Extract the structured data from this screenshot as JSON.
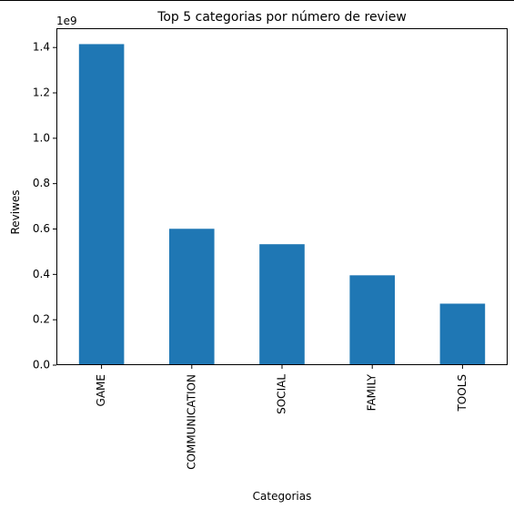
{
  "chart_data": {
    "type": "bar",
    "title": "Top 5 categorias por número de review",
    "xlabel": "Categorias",
    "ylabel": "Reviwes",
    "categories": [
      "GAME",
      "COMMUNICATION",
      "SOCIAL",
      "FAMILY",
      "TOOLS"
    ],
    "values": [
      1415000000,
      601000000,
      533000000,
      396000000,
      271000000
    ],
    "ylim": [
      0,
      1485000000
    ],
    "yticks": [
      0,
      200000000,
      400000000,
      600000000,
      800000000,
      1000000000,
      1200000000,
      1400000000
    ],
    "ytick_labels": [
      "0.0",
      "0.2",
      "0.4",
      "0.6",
      "0.8",
      "1.0",
      "1.2",
      "1.4"
    ],
    "offset_label": "1e9",
    "bar_color": "#1f77b4",
    "grid": false
  }
}
